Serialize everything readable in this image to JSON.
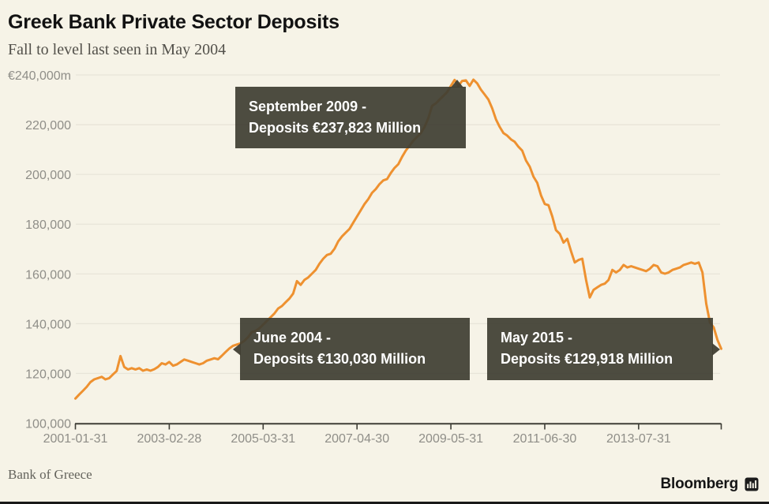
{
  "header": {
    "title": "Greek Bank Private Sector Deposits",
    "subtitle": "Fall to level last seen in May 2004"
  },
  "footer": {
    "source": "Bank of Greece",
    "brand": "Bloomberg"
  },
  "colors": {
    "background": "#f6f3e7",
    "line": "#ee9130",
    "gridline": "#e8e5d9",
    "axis": "#3f3e37",
    "axis_label": "#8f8e88",
    "title": "#121212",
    "subtitle": "#53514b",
    "annotation_box": "rgba(64,62,51,0.93)",
    "annotation_text": "#ffffff",
    "source": "#64635c",
    "brand": "#151515",
    "bottom_bar": "#191919"
  },
  "annotations": [
    {
      "id": "sep-2009",
      "line1": "September 2009 -",
      "line2": "Deposits €237,823 Million",
      "arrow": "up",
      "point": {
        "date": "2009-09",
        "value": 237823
      }
    },
    {
      "id": "jun-2004",
      "line1": "June 2004 -",
      "line2": "Deposits €130,030 Million",
      "arrow": "left",
      "point": {
        "date": "2004-06",
        "value": 130030
      }
    },
    {
      "id": "may-2015",
      "line1": "May 2015 -",
      "line2": "Deposits €129,918 Million",
      "arrow": "right",
      "point": {
        "date": "2015-05",
        "value": 129918
      }
    }
  ],
  "chart_data": {
    "type": "line",
    "title": "Greek Bank Private Sector Deposits",
    "unit": "EUR million",
    "frequency": "monthly",
    "start": "2001-01",
    "end": "2015-05",
    "ylim": [
      100000,
      240000
    ],
    "grid": "horizontal",
    "y_ticks": [
      {
        "value": 240000,
        "label": "€240,000m"
      },
      {
        "value": 220000,
        "label": "220,000"
      },
      {
        "value": 200000,
        "label": "200,000"
      },
      {
        "value": 180000,
        "label": "180,000"
      },
      {
        "value": 160000,
        "label": "160,000"
      },
      {
        "value": 140000,
        "label": "140,000"
      },
      {
        "value": 120000,
        "label": "120,000"
      },
      {
        "value": 100000,
        "label": "100,000"
      }
    ],
    "x_ticks": [
      {
        "month": 0,
        "label": "2001-01-31"
      },
      {
        "month": 25,
        "label": "2003-02-28"
      },
      {
        "month": 50,
        "label": "2005-03-31"
      },
      {
        "month": 75,
        "label": "2007-04-30"
      },
      {
        "month": 100,
        "label": "2009-05-31"
      },
      {
        "month": 125,
        "label": "2011-06-30"
      },
      {
        "month": 150,
        "label": "2013-07-31"
      }
    ],
    "axis_end_month": 172,
    "series": [
      {
        "name": "Private sector deposits",
        "values": [
          109900,
          111500,
          113000,
          114600,
          116500,
          117600,
          118100,
          118600,
          117600,
          118100,
          119600,
          121000,
          127000,
          122600,
          121600,
          122100,
          121600,
          122100,
          121100,
          121600,
          121100,
          121700,
          122600,
          124100,
          123600,
          124600,
          123100,
          123600,
          124600,
          125600,
          125100,
          124600,
          124100,
          123600,
          124100,
          125100,
          125600,
          126100,
          125700,
          127100,
          128600,
          130030,
          131100,
          131600,
          132100,
          133100,
          134600,
          136600,
          137100,
          138100,
          139600,
          141100,
          142600,
          144100,
          146100,
          147100,
          148600,
          150100,
          152100,
          157100,
          155600,
          157600,
          158600,
          160100,
          161600,
          164100,
          166100,
          167600,
          168100,
          170100,
          173100,
          175100,
          176600,
          178100,
          180600,
          183100,
          185600,
          188100,
          190100,
          192600,
          194100,
          196100,
          197600,
          198100,
          200600,
          202600,
          204100,
          207100,
          209600,
          211600,
          213600,
          215100,
          216600,
          219100,
          222600,
          227600,
          228600,
          230100,
          231600,
          233100,
          235600,
          238000,
          235600,
          237600,
          237823,
          235600,
          238100,
          236600,
          234100,
          232100,
          230100,
          226600,
          222100,
          219100,
          216600,
          215600,
          214100,
          213100,
          211100,
          209600,
          205600,
          203100,
          199100,
          196600,
          191600,
          188100,
          187600,
          183100,
          177600,
          176100,
          172600,
          174100,
          169100,
          164600,
          165600,
          166100,
          157600,
          150500,
          153600,
          154600,
          155600,
          156100,
          157600,
          161600,
          160600,
          161600,
          163600,
          162600,
          163100,
          162600,
          162100,
          161600,
          161100,
          162100,
          163600,
          163100,
          160600,
          160100,
          160600,
          161600,
          162100,
          162600,
          163600,
          164100,
          164600,
          164100,
          164600,
          160600,
          148000,
          140500,
          138500,
          133500,
          129918
        ]
      }
    ]
  }
}
